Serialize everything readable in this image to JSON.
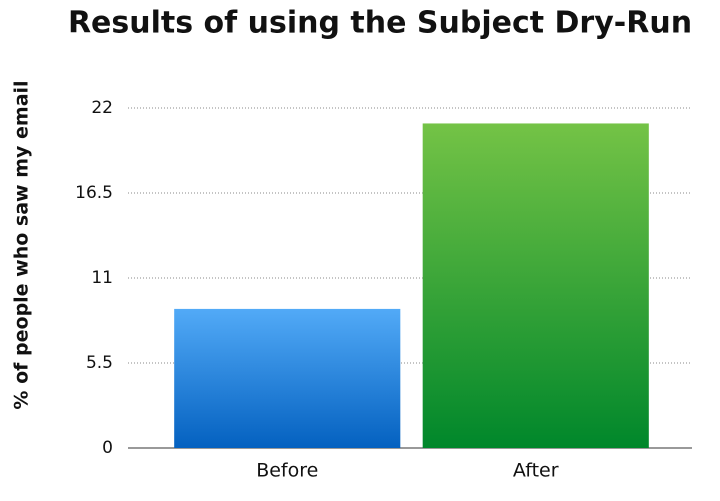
{
  "chart_data": {
    "type": "bar",
    "title": "Results of using the Subject Dry-Run",
    "y_label": "% of people who saw my email",
    "categories": [
      "Before",
      "After"
    ],
    "values": [
      9,
      21
    ],
    "colors": [
      [
        "#52aaf7",
        "#0461c0"
      ],
      [
        "#74c346",
        "#00872b"
      ]
    ],
    "ylim": [
      0,
      22
    ],
    "yticks": [
      0,
      5.5,
      11,
      16.5,
      22
    ],
    "grid": true
  }
}
